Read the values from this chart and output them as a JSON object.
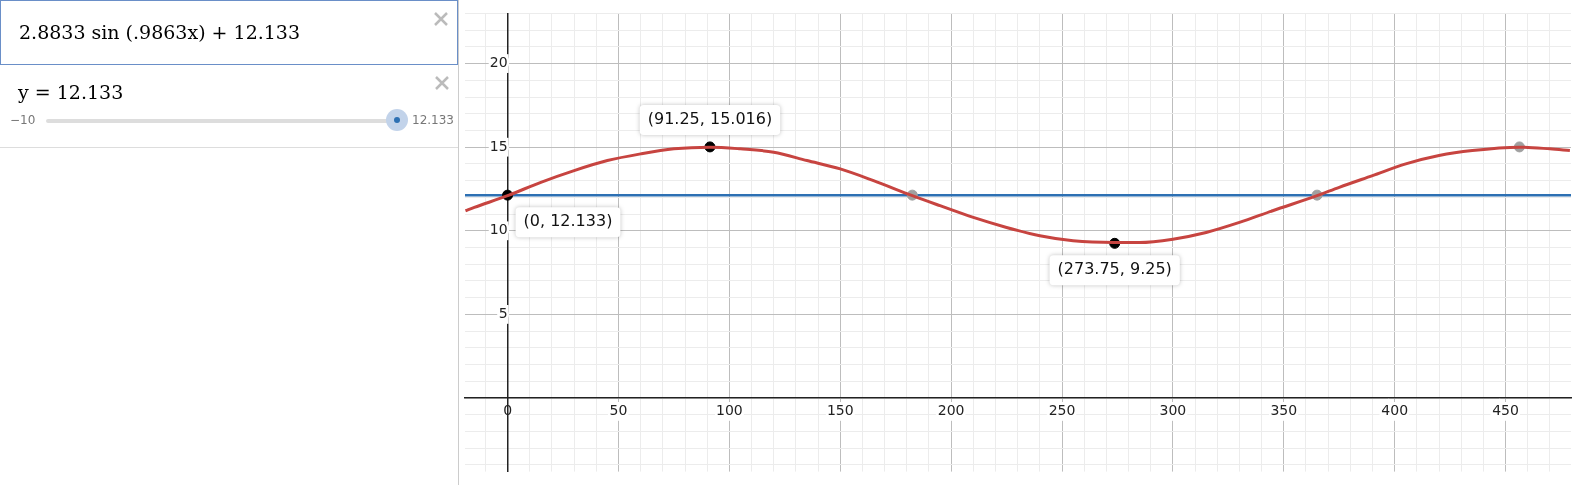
{
  "chart_data": {
    "type": "line",
    "series": [
      {
        "color": "#c74440",
        "x": [
          -19,
          -15,
          0,
          15,
          30,
          45,
          60,
          75,
          91.25,
          105,
          120,
          135,
          150,
          165,
          182.5,
          195,
          210,
          225,
          240,
          255,
          273.75,
          285,
          300,
          315,
          330,
          345,
          365,
          375,
          390,
          405,
          420,
          435,
          456.25,
          470,
          479
        ],
        "values": [
          11.2,
          11.4,
          12.1,
          12.9,
          13.6,
          14.2,
          14.6,
          14.9,
          15.0,
          14.9,
          14.7,
          14.2,
          13.7,
          13.0,
          12.1,
          11.5,
          10.8,
          10.2,
          9.7,
          9.4,
          9.3,
          9.3,
          9.5,
          9.9,
          10.5,
          11.2,
          12.1,
          12.6,
          13.3,
          14.0,
          14.5,
          14.8,
          15.0,
          14.9,
          14.8
        ]
      },
      {
        "type": "scatter",
        "color": "#000000",
        "x": [
          0,
          91.25,
          273.75
        ],
        "values": [
          12.133,
          15.016,
          9.25
        ]
      },
      {
        "type": "scatter",
        "color": "#a0a0a0",
        "x": [
          182.5,
          365,
          456.25
        ],
        "values": [
          12.133,
          12.133,
          15.016
        ]
      }
    ],
    "ref_lines": [
      {
        "axis": "y",
        "value": 12.133,
        "color": "#2d70b3"
      }
    ],
    "annotations": [
      "2.8833 sin (.9863x) + 12.133",
      "y = 12.133",
      "−10",
      "12.133",
      {
        "text": "(0, 12.133)",
        "x": 0,
        "y": 12.133
      },
      {
        "text": "(91.25, 15.016)",
        "x": 91.25,
        "y": 15.016
      },
      {
        "text": "(273.75, 9.25)",
        "x": 273.75,
        "y": 9.25
      }
    ],
    "xlim": [
      -19.2,
      479.5
    ],
    "ylim": [
      -4.4,
      23
    ],
    "xticks": [
      {
        "value": -10,
        "label": null
      },
      0,
      {
        "value": 10,
        "label": null
      },
      {
        "value": 20,
        "label": null
      },
      {
        "value": 30,
        "label": null
      },
      {
        "value": 40,
        "label": null
      },
      50,
      {
        "value": 60,
        "label": null
      },
      {
        "value": 70,
        "label": null
      },
      {
        "value": 80,
        "label": null
      },
      {
        "value": 90,
        "label": null
      },
      100,
      {
        "value": 110,
        "label": null
      },
      {
        "value": 120,
        "label": null
      },
      {
        "value": 130,
        "label": null
      },
      {
        "value": 140,
        "label": null
      },
      150,
      {
        "value": 160,
        "label": null
      },
      {
        "value": 170,
        "label": null
      },
      {
        "value": 180,
        "label": null
      },
      {
        "value": 190,
        "label": null
      },
      200,
      {
        "value": 210,
        "label": null
      },
      {
        "value": 220,
        "label": null
      },
      {
        "value": 230,
        "label": null
      },
      {
        "value": 240,
        "label": null
      },
      250,
      {
        "value": 260,
        "label": null
      },
      {
        "value": 270,
        "label": null
      },
      {
        "value": 280,
        "label": null
      },
      {
        "value": 290,
        "label": null
      },
      300,
      {
        "value": 310,
        "label": null
      },
      {
        "value": 320,
        "label": null
      },
      {
        "value": 330,
        "label": null
      },
      {
        "value": 340,
        "label": null
      },
      350,
      {
        "value": 360,
        "label": null
      },
      {
        "value": 370,
        "label": null
      },
      {
        "value": 380,
        "label": null
      },
      {
        "value": 390,
        "label": null
      },
      400,
      {
        "value": 410,
        "label": null
      },
      {
        "value": 420,
        "label": null
      },
      {
        "value": 430,
        "label": null
      },
      {
        "value": 440,
        "label": null
      },
      450,
      {
        "value": 460,
        "label": null
      },
      {
        "value": 470,
        "label": null
      }
    ],
    "yticks": [
      {
        "value": -4,
        "label": null
      },
      {
        "value": -3,
        "label": null
      },
      {
        "value": -2,
        "label": null
      },
      {
        "value": -1,
        "label": null
      },
      {
        "value": 0,
        "label": null
      },
      {
        "value": 1,
        "label": null
      },
      {
        "value": 2,
        "label": null
      },
      {
        "value": 3,
        "label": null
      },
      {
        "value": 4,
        "label": null
      },
      5,
      {
        "value": 6,
        "label": null
      },
      {
        "value": 7,
        "label": null
      },
      {
        "value": 8,
        "label": null
      },
      {
        "value": 9,
        "label": null
      },
      10,
      {
        "value": 11,
        "label": null
      },
      {
        "value": 12,
        "label": null
      },
      {
        "value": 13,
        "label": null
      },
      {
        "value": 14,
        "label": null
      },
      15,
      {
        "value": 16,
        "label": null
      },
      {
        "value": 17,
        "label": null
      },
      {
        "value": 18,
        "label": null
      },
      {
        "value": 19,
        "label": null
      },
      20,
      {
        "value": 21,
        "label": null
      },
      {
        "value": 22,
        "label": null
      },
      {
        "value": 23,
        "label": null
      }
    ],
    "grid": true,
    "legend": false
  }
}
